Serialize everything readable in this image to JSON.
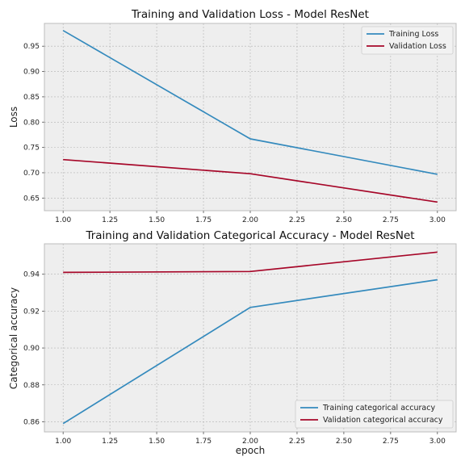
{
  "chart_data": [
    {
      "type": "line",
      "title": "Training and Validation Loss - Model ResNet",
      "xlabel": "",
      "ylabel": "Loss",
      "xlim": [
        0.9,
        3.1
      ],
      "ylim": [
        0.625,
        0.995
      ],
      "xticks": [
        1.0,
        1.25,
        1.5,
        1.75,
        2.0,
        2.25,
        2.5,
        2.75,
        3.0
      ],
      "xtick_labels": [
        "1.00",
        "1.25",
        "1.50",
        "1.75",
        "2.00",
        "2.25",
        "2.50",
        "2.75",
        "3.00"
      ],
      "yticks": [
        0.65,
        0.7,
        0.75,
        0.8,
        0.85,
        0.9,
        0.95
      ],
      "ytick_labels": [
        "0.65",
        "0.70",
        "0.75",
        "0.80",
        "0.85",
        "0.90",
        "0.95"
      ],
      "grid": true,
      "legend_position": "top-right",
      "series": [
        {
          "name": "Training Loss",
          "color": "#348ABD",
          "x": [
            1,
            2,
            3
          ],
          "y": [
            0.981,
            0.767,
            0.697
          ]
        },
        {
          "name": "Validation Loss",
          "color": "#A60628",
          "x": [
            1,
            2,
            3
          ],
          "y": [
            0.726,
            0.698,
            0.642
          ]
        }
      ]
    },
    {
      "type": "line",
      "title": "Training and Validation Categorical Accuracy - Model ResNet",
      "xlabel": "epoch",
      "ylabel": "Categorical accuracy",
      "xlim": [
        0.9,
        3.1
      ],
      "ylim": [
        0.8545,
        0.9565
      ],
      "xticks": [
        1.0,
        1.25,
        1.5,
        1.75,
        2.0,
        2.25,
        2.5,
        2.75,
        3.0
      ],
      "xtick_labels": [
        "1.00",
        "1.25",
        "1.50",
        "1.75",
        "2.00",
        "2.25",
        "2.50",
        "2.75",
        "3.00"
      ],
      "yticks": [
        0.86,
        0.88,
        0.9,
        0.92,
        0.94
      ],
      "ytick_labels": [
        "0.86",
        "0.88",
        "0.90",
        "0.92",
        "0.94"
      ],
      "grid": true,
      "legend_position": "bottom-right",
      "series": [
        {
          "name": "Training categorical accuracy",
          "color": "#348ABD",
          "x": [
            1,
            2,
            3
          ],
          "y": [
            0.859,
            0.922,
            0.937
          ]
        },
        {
          "name": "Validation categorical accuracy",
          "color": "#A60628",
          "x": [
            1,
            2,
            3
          ],
          "y": [
            0.941,
            0.9415,
            0.952
          ]
        }
      ]
    }
  ]
}
